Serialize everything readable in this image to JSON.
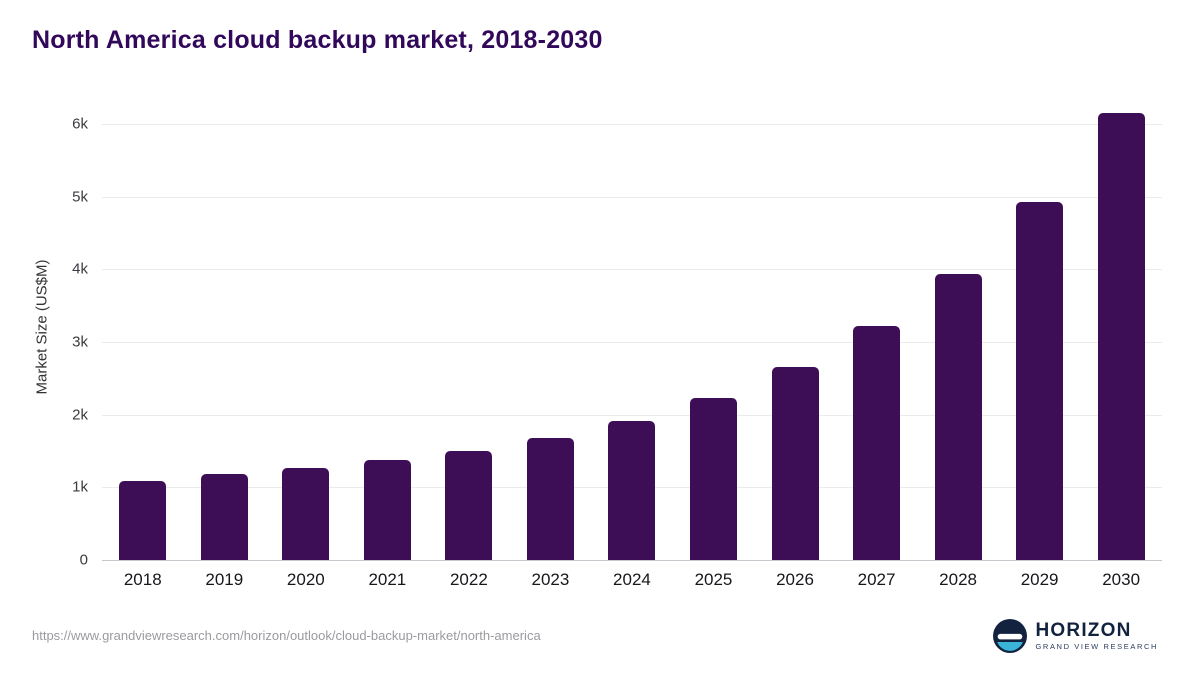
{
  "header": {
    "title": "North America cloud backup market, 2018-2030"
  },
  "chart_data": {
    "type": "bar",
    "title": "North America cloud backup market, 2018-2030",
    "categories": [
      "2018",
      "2019",
      "2020",
      "2021",
      "2022",
      "2023",
      "2024",
      "2025",
      "2026",
      "2027",
      "2028",
      "2029",
      "2030"
    ],
    "values": [
      1090,
      1180,
      1265,
      1380,
      1500,
      1675,
      1915,
      2230,
      2660,
      3220,
      3940,
      4930,
      6150
    ],
    "xlabel": "",
    "ylabel": "Market Size (US$M)",
    "ylim": [
      0,
      6400
    ],
    "yticks": [
      0,
      1000,
      2000,
      3000,
      4000,
      5000,
      6000
    ],
    "ytick_labels": [
      "0",
      "1k",
      "2k",
      "3k",
      "4k",
      "5k",
      "6k"
    ],
    "grid": true,
    "legend": "none",
    "bar_color": "#3d0e56"
  },
  "footer": {
    "source_url": "https://www.grandviewresearch.com/horizon/outlook/cloud-backup-market/north-america",
    "logo_name": "HORIZON",
    "logo_subtitle": "GRAND VIEW RESEARCH"
  },
  "colors": {
    "title": "#31085a",
    "bar": "#3d0e56",
    "logo_navy": "#13233f",
    "logo_teal": "#3ab5d8",
    "gridline": "#ebebee"
  }
}
